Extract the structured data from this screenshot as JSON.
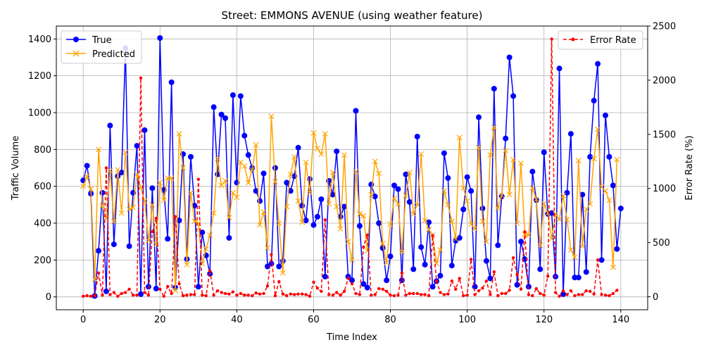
{
  "chart_data": {
    "type": "line",
    "title": "Street: EMMONS AVENUE (using weather feature)",
    "xlabel": "Time Index",
    "ylabel": "Traffic Volume",
    "y2label": "Error Rate (%)",
    "xlim": [
      -7,
      147
    ],
    "ylim": [
      -70,
      1470
    ],
    "y2lim": [
      -120,
      2500
    ],
    "xticks": [
      0,
      20,
      40,
      60,
      80,
      100,
      120,
      140
    ],
    "yticks": [
      0,
      200,
      400,
      600,
      800,
      1000,
      1200,
      1400
    ],
    "y2ticks": [
      0,
      500,
      1000,
      1500,
      2000,
      2500
    ],
    "grid": true,
    "legend_left": "upper-left",
    "legend_right": "upper-right",
    "colors": {
      "true": "#0000ff",
      "predicted": "#ffa500",
      "error": "#ff0000"
    },
    "series": [
      {
        "name": "True",
        "axis": "left",
        "values": [
          632,
          712,
          560,
          5,
          250,
          565,
          30,
          930,
          285,
          655,
          675,
          1350,
          275,
          565,
          820,
          15,
          905,
          55,
          590,
          45,
          1405,
          580,
          315,
          1165,
          50,
          415,
          775,
          205,
          760,
          495,
          55,
          350,
          225,
          125,
          1030,
          665,
          990,
          970,
          320,
          1095,
          620,
          1090,
          875,
          770,
          700,
          575,
          520,
          670,
          165,
          180,
          700,
          165,
          195,
          620,
          575,
          655,
          810,
          495,
          415,
          640,
          390,
          435,
          530,
          110,
          630,
          555,
          790,
          435,
          490,
          110,
          90,
          1010,
          385,
          70,
          50,
          610,
          545,
          400,
          265,
          90,
          220,
          605,
          585,
          90,
          665,
          515,
          150,
          870,
          270,
          175,
          405,
          55,
          85,
          115,
          780,
          645,
          170,
          305,
          320,
          475,
          650,
          575,
          55,
          975,
          480,
          195,
          100,
          1130,
          280,
          545,
          860,
          1300,
          1090,
          65,
          300,
          205,
          55,
          680,
          525,
          150,
          785,
          450,
          455,
          110,
          1240,
          15,
          565,
          885,
          105,
          105,
          555,
          135,
          760,
          1065,
          1265,
          200,
          985,
          760,
          605,
          260,
          480
        ]
      },
      {
        "name": "Predicted",
        "axis": "left",
        "values": [
          600,
          655,
          585,
          95,
          800,
          495,
          425,
          685,
          410,
          690,
          455,
          785,
          475,
          485,
          665,
          595,
          520,
          305,
          500,
          285,
          620,
          525,
          645,
          645,
          35,
          885,
          700,
          175,
          565,
          410,
          400,
          180,
          260,
          335,
          455,
          750,
          605,
          630,
          430,
          565,
          540,
          730,
          710,
          620,
          690,
          825,
          390,
          460,
          265,
          980,
          625,
          400,
          130,
          490,
          665,
          760,
          520,
          405,
          730,
          565,
          890,
          805,
          775,
          885,
          505,
          675,
          490,
          370,
          770,
          300,
          200,
          680,
          450,
          440,
          250,
          555,
          735,
          670,
          290,
          185,
          395,
          535,
          505,
          245,
          550,
          675,
          450,
          500,
          775,
          415,
          365,
          335,
          180,
          255,
          575,
          500,
          410,
          315,
          865,
          590,
          520,
          395,
          370,
          810,
          410,
          300,
          770,
          920,
          480,
          550,
          795,
          555,
          745,
          400,
          725,
          340,
          335,
          590,
          530,
          280,
          505,
          455,
          315,
          450,
          420,
          550,
          420,
          255,
          215,
          740,
          275,
          475,
          505,
          750,
          910,
          595,
          575,
          525,
          160,
          745
        ]
      },
      {
        "name": "Error Rate",
        "axis": "right",
        "values": [
          5,
          10,
          5,
          10,
          220,
          15,
          1190,
          20,
          40,
          5,
          30,
          40,
          70,
          15,
          15,
          2020,
          40,
          15,
          600,
          725,
          70,
          5,
          95,
          30,
          740,
          120,
          10,
          15,
          20,
          20,
          1085,
          15,
          10,
          240,
          15,
          55,
          40,
          30,
          25,
          45,
          15,
          30,
          15,
          15,
          10,
          35,
          25,
          30,
          100,
          390,
          10,
          140,
          25,
          10,
          25,
          20,
          25,
          25,
          20,
          5,
          135,
          80,
          50,
          710,
          20,
          15,
          40,
          15,
          50,
          170,
          120,
          30,
          20,
          460,
          570,
          15,
          20,
          75,
          70,
          50,
          15,
          10,
          15,
          220,
          15,
          30,
          30,
          30,
          20,
          20,
          10,
          565,
          145,
          40,
          20,
          25,
          145,
          70,
          170,
          10,
          15,
          345,
          20,
          55,
          80,
          145,
          20,
          230,
          10,
          30,
          30,
          60,
          360,
          205,
          70,
          600,
          20,
          10,
          75,
          30,
          15,
          190,
          2380,
          40,
          5,
          55,
          20,
          55,
          10,
          20,
          20,
          55,
          50,
          25,
          340,
          20,
          15,
          10,
          30,
          60
        ]
      }
    ]
  }
}
